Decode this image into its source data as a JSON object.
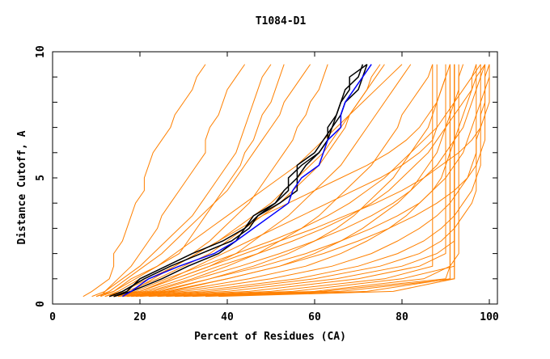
{
  "chart_data": {
    "type": "line",
    "title": "T1084-D1",
    "xlabel": "Percent of Residues (CA)",
    "ylabel": "Distance Cutoff, A",
    "xlim": [
      0,
      100
    ],
    "ylim": [
      0,
      10
    ],
    "xticks": [
      0,
      20,
      40,
      60,
      80,
      100
    ],
    "yticks": [
      0,
      5,
      10
    ],
    "grid": false,
    "legend": "none",
    "colors": {
      "models": "#ff8000",
      "highlight": "#000000",
      "best": "#0000ff"
    },
    "y": [
      0.3,
      0.5,
      1,
      1.5,
      2,
      2.5,
      3,
      3.5,
      4,
      4.5,
      5,
      5.5,
      6,
      6.5,
      7,
      7.5,
      8,
      8.5,
      9,
      9.5
    ],
    "series_best": {
      "x": [
        16,
        18,
        22,
        29,
        37,
        42,
        46,
        50,
        54,
        55,
        57,
        61,
        62,
        63,
        66,
        66,
        67,
        69,
        71,
        73
      ]
    },
    "series_highlight": [
      {
        "x": [
          13,
          16,
          21,
          27,
          34,
          41,
          45,
          47,
          51,
          54,
          54,
          57,
          61,
          63,
          63,
          65,
          66,
          67,
          70,
          71
        ]
      },
      {
        "x": [
          14,
          17,
          20,
          26,
          32,
          39,
          44,
          46,
          51,
          53,
          56,
          56,
          60,
          62,
          64,
          65,
          66,
          68,
          68,
          72
        ]
      },
      {
        "x": [
          14,
          18,
          25,
          31,
          38,
          42,
          44,
          47,
          52,
          56,
          56,
          58,
          61,
          63,
          64,
          66,
          67,
          70,
          71,
          72
        ]
      }
    ],
    "series_models": [
      {
        "x": [
          7,
          9,
          13,
          14,
          14,
          16,
          17,
          18,
          19,
          21,
          21,
          22,
          23,
          25,
          27,
          28,
          30,
          32,
          33,
          35
        ]
      },
      {
        "x": [
          11,
          12,
          15,
          18,
          20,
          22,
          24,
          25,
          27,
          29,
          31,
          33,
          35,
          35,
          36,
          38,
          39,
          40,
          42,
          44
        ]
      },
      {
        "x": [
          10,
          14,
          18,
          24,
          29,
          31,
          33,
          35,
          37,
          39,
          41,
          43,
          44,
          46,
          47,
          48,
          50,
          51,
          52,
          53
        ]
      },
      {
        "x": [
          12,
          15,
          20,
          26,
          32,
          36,
          39,
          42,
          45,
          47,
          49,
          51,
          53,
          55,
          56,
          58,
          59,
          61,
          62,
          63
        ]
      },
      {
        "x": [
          13,
          17,
          24,
          30,
          36,
          40,
          44,
          48,
          52,
          55,
          58,
          61,
          63,
          65,
          67,
          68,
          70,
          72,
          73,
          75
        ]
      },
      {
        "x": [
          13,
          20,
          28,
          36,
          42,
          46,
          50,
          54,
          57,
          60,
          63,
          66,
          68,
          70,
          72,
          74,
          76,
          78,
          80,
          82
        ]
      },
      {
        "x": [
          14,
          22,
          32,
          40,
          47,
          52,
          57,
          61,
          64,
          67,
          70,
          73,
          75,
          77,
          79,
          80,
          82,
          84,
          86,
          87
        ]
      },
      {
        "x": [
          15,
          24,
          36,
          46,
          54,
          60,
          65,
          69,
          72,
          75,
          78,
          80,
          82,
          84,
          86,
          87,
          88,
          89,
          90,
          91
        ]
      },
      {
        "x": [
          15,
          26,
          40,
          52,
          60,
          66,
          71,
          75,
          79,
          82,
          84,
          86,
          88,
          89,
          90,
          91,
          92,
          93,
          93,
          94
        ]
      },
      {
        "x": [
          16,
          28,
          45,
          58,
          66,
          72,
          77,
          81,
          84,
          87,
          89,
          90,
          91,
          92,
          93,
          94,
          95,
          96,
          96,
          97
        ]
      },
      {
        "x": [
          17,
          30,
          50,
          64,
          73,
          79,
          84,
          88,
          91,
          93,
          95,
          96,
          97,
          97,
          98,
          98,
          99,
          99,
          100,
          100
        ]
      },
      {
        "x": [
          18,
          33,
          56,
          70,
          79,
          85,
          89,
          92,
          94,
          96,
          97,
          98,
          98,
          99,
          99,
          99,
          100,
          100,
          100,
          100
        ]
      },
      {
        "x": [
          19,
          36,
          60,
          75,
          84,
          89,
          92,
          94,
          96,
          97,
          97,
          97,
          97,
          97,
          97,
          97,
          97,
          97,
          97,
          97
        ]
      },
      {
        "x": [
          20,
          40,
          65,
          80,
          88,
          92,
          92,
          92,
          92,
          92,
          92,
          92,
          92,
          92,
          92,
          92,
          92,
          92,
          92,
          92
        ]
      },
      {
        "x": [
          22,
          45,
          70,
          84,
          90,
          90,
          90,
          90,
          90,
          90,
          90,
          90,
          90,
          90,
          90,
          90,
          90,
          90,
          90,
          90
        ]
      },
      {
        "x": [
          24,
          50,
          76,
          87,
          87,
          87,
          87,
          87,
          87,
          87,
          87,
          87,
          87,
          87,
          87,
          87,
          87,
          87,
          87,
          87
        ]
      },
      {
        "x": [
          26,
          55,
          80,
          92,
          92,
          92,
          92,
          92,
          92,
          92,
          92,
          92,
          92,
          92,
          92,
          92,
          92,
          92,
          92,
          92
        ]
      },
      {
        "x": [
          28,
          60,
          85,
          91,
          93,
          93,
          93,
          93,
          93,
          93,
          93,
          93,
          93,
          93,
          93,
          93,
          93,
          93,
          93,
          93
        ]
      },
      {
        "x": [
          30,
          62,
          90,
          91,
          91,
          91,
          91,
          91,
          91,
          91,
          91,
          91,
          91,
          91,
          91,
          91,
          91,
          91,
          91,
          91
        ]
      },
      {
        "x": [
          32,
          66,
          92,
          92,
          92,
          92,
          92,
          92,
          92,
          92,
          92,
          92,
          92,
          92,
          92,
          92,
          92,
          92,
          92,
          92
        ]
      },
      {
        "x": [
          35,
          72,
          91,
          91,
          91,
          91,
          91,
          91,
          91,
          91,
          91,
          91,
          91,
          91,
          91,
          91,
          91,
          91,
          91,
          91
        ]
      },
      {
        "x": [
          38,
          78,
          92,
          92,
          92,
          92,
          92,
          92,
          92,
          92,
          92,
          92,
          92,
          92,
          92,
          92,
          92,
          92,
          92,
          92
        ]
      },
      {
        "x": [
          14,
          19,
          26,
          34,
          42,
          50,
          57,
          63,
          68,
          72,
          76,
          79,
          82,
          85,
          88,
          90,
          92,
          94,
          96,
          98
        ]
      },
      {
        "x": [
          15,
          21,
          30,
          38,
          47,
          55,
          62,
          68,
          73,
          77,
          80,
          83,
          86,
          88,
          90,
          92,
          94,
          96,
          97,
          99
        ]
      },
      {
        "x": [
          16,
          23,
          33,
          43,
          52,
          60,
          67,
          73,
          78,
          82,
          85,
          88,
          90,
          92,
          94,
          95,
          96,
          97,
          98,
          99
        ]
      },
      {
        "x": [
          17,
          25,
          36,
          48,
          58,
          66,
          73,
          79,
          84,
          87,
          90,
          92,
          94,
          95,
          96,
          97,
          98,
          99,
          99,
          100
        ]
      },
      {
        "x": [
          12,
          16,
          22,
          28,
          33,
          38,
          42,
          46,
          50,
          53,
          56,
          59,
          62,
          64,
          66,
          68,
          70,
          72,
          74,
          76
        ]
      },
      {
        "x": [
          11,
          14,
          19,
          24,
          28,
          32,
          36,
          40,
          44,
          48,
          52,
          56,
          59,
          62,
          65,
          68,
          71,
          74,
          77,
          80
        ]
      },
      {
        "x": [
          13,
          18,
          23,
          28,
          33,
          38,
          43,
          48,
          54,
          60,
          66,
          72,
          77,
          81,
          84,
          86,
          88,
          89,
          90,
          90
        ]
      },
      {
        "x": [
          14,
          20,
          27,
          33,
          39,
          45,
          51,
          57,
          63,
          69,
          75,
          80,
          84,
          87,
          88,
          88,
          88,
          88,
          88,
          88
        ]
      },
      {
        "x": [
          10,
          13,
          17,
          21,
          25,
          28,
          31,
          34,
          37,
          40,
          42,
          44,
          46,
          48,
          50,
          52,
          53,
          55,
          57,
          59
        ]
      },
      {
        "x": [
          9,
          12,
          16,
          20,
          23,
          26,
          29,
          32,
          34,
          36,
          38,
          40,
          42,
          43,
          44,
          45,
          46,
          47,
          48,
          50
        ]
      },
      {
        "x": [
          15,
          20,
          28,
          36,
          44,
          52,
          60,
          67,
          74,
          80,
          85,
          89,
          93,
          96,
          98,
          99,
          99,
          99,
          99,
          99
        ]
      },
      {
        "x": [
          18,
          27,
          40,
          52,
          62,
          70,
          77,
          83,
          88,
          92,
          95,
          97,
          98,
          98,
          98,
          98,
          98,
          98,
          98,
          98
        ]
      }
    ]
  }
}
